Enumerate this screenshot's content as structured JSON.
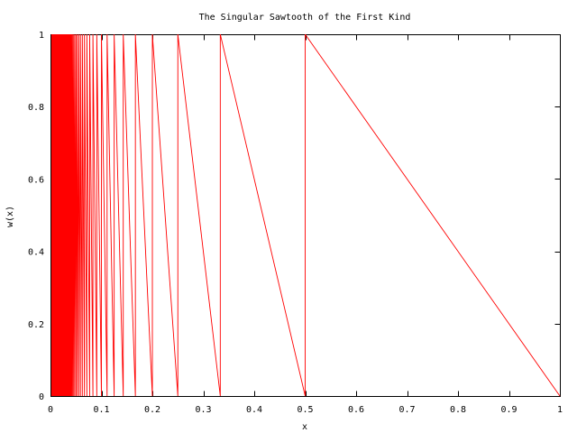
{
  "chart_data": {
    "type": "line",
    "title": "The Singular Sawtooth of the First Kind",
    "xlabel": "x",
    "ylabel": "w(x)",
    "xlim": [
      0,
      1
    ],
    "ylim": [
      0,
      1
    ],
    "grid": false,
    "legend": "none",
    "x_ticks": [
      "0",
      "0.1",
      "0.2",
      "0.3",
      "0.4",
      "0.5",
      "0.6",
      "0.7",
      "0.8",
      "0.9",
      "1"
    ],
    "y_ticks": [
      "0",
      "0.2",
      "0.4",
      "0.6",
      "0.8",
      "1"
    ],
    "series": [
      {
        "name": "",
        "color": "#ff0000",
        "function": "w(x) = x*floor(1/x)... sawtooth: on (1/(n+1), 1/n] value descends linearly from 1 at x=1/(n+1) to 0 at x=1/n",
        "sample_points": [
          {
            "x": 1.0,
            "y": 0.0
          },
          {
            "x": 0.5,
            "y": 1.0
          },
          {
            "x": 0.5,
            "y": 0.0
          },
          {
            "x": 0.3333,
            "y": 1.0
          },
          {
            "x": 0.3333,
            "y": 0.0
          },
          {
            "x": 0.25,
            "y": 1.0
          },
          {
            "x": 0.25,
            "y": 0.0
          },
          {
            "x": 0.2,
            "y": 1.0
          },
          {
            "x": 0.2,
            "y": 0.0
          },
          {
            "x": 0.1667,
            "y": 1.0
          }
        ]
      }
    ]
  }
}
